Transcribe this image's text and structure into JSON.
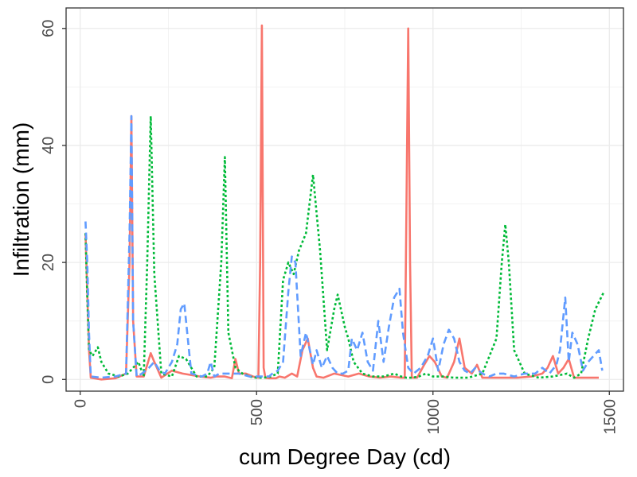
{
  "chart_data": {
    "type": "line",
    "title": "",
    "xlabel": "cum Degree Day (cd)",
    "ylabel": "Infiltration (mm)",
    "xlim": [
      -40,
      1540
    ],
    "ylim": [
      -2,
      63.5
    ],
    "x_ticks": [
      0,
      500,
      1000,
      1500
    ],
    "x_tick_labels": [
      "0",
      "500",
      "1000",
      "1500"
    ],
    "y_ticks": [
      0,
      20,
      40,
      60
    ],
    "y_tick_labels": [
      "0",
      "20",
      "40",
      "60"
    ],
    "x_minor_ticks": [
      250,
      750,
      1250
    ],
    "y_minor_ticks": [
      10,
      30,
      50
    ],
    "grid": true,
    "legend": "none",
    "series": [
      {
        "color": "#F8766D",
        "dash": "solid",
        "x": [
          15,
          20,
          25,
          30,
          60,
          100,
          130,
          140,
          145,
          150,
          160,
          180,
          200,
          210,
          230,
          260,
          290,
          340,
          370,
          385,
          410,
          430,
          440,
          450,
          470,
          490,
          505,
          510,
          515,
          520,
          525,
          535,
          555,
          565,
          580,
          600,
          615,
          630,
          645,
          660,
          670,
          690,
          720,
          760,
          790,
          820,
          850,
          880,
          910,
          920,
          925,
          930,
          935,
          940,
          945,
          955,
          975,
          990,
          1005,
          1025,
          1040,
          1060,
          1075,
          1090,
          1110,
          1125,
          1140,
          1165,
          1200,
          1240,
          1280,
          1310,
          1325,
          1340,
          1355,
          1370,
          1385,
          1400,
          1430,
          1470
        ],
        "y": [
          25,
          15,
          5,
          0.3,
          0,
          0.2,
          1,
          20,
          45,
          10,
          0.5,
          0.5,
          4.5,
          3,
          0.3,
          1.5,
          1,
          0.5,
          0.3,
          0.5,
          0.5,
          0.2,
          3.5,
          1,
          1,
          0.5,
          0.3,
          20,
          60.5,
          2,
          0.3,
          0.2,
          0.2,
          0.5,
          0.3,
          1,
          0.5,
          5,
          7,
          2,
          0.5,
          0.3,
          1,
          0.5,
          1,
          0.5,
          0.3,
          0.5,
          0.3,
          0.3,
          30,
          60,
          20,
          0.3,
          0.3,
          0.3,
          2.5,
          4,
          3,
          0.5,
          0.3,
          3,
          7,
          2,
          1,
          2.5,
          0.3,
          0.3,
          0.3,
          0.3,
          0.5,
          1,
          2,
          4,
          1,
          2,
          3.5,
          0.3,
          0.3,
          0.3
        ]
      },
      {
        "color": "#00BA38",
        "dash": "dotted",
        "x": [
          15,
          20,
          25,
          35,
          50,
          60,
          80,
          110,
          135,
          150,
          165,
          180,
          190,
          200,
          210,
          230,
          260,
          280,
          300,
          330,
          360,
          380,
          400,
          410,
          420,
          440,
          460,
          480,
          500,
          520,
          540,
          560,
          575,
          590,
          605,
          620,
          640,
          660,
          680,
          700,
          720,
          730,
          750,
          760,
          775,
          800,
          830,
          860,
          890,
          910,
          925,
          940,
          960,
          980,
          1000,
          1030,
          1060,
          1100,
          1140,
          1180,
          1195,
          1205,
          1215,
          1230,
          1260,
          1300,
          1340,
          1380,
          1400,
          1420,
          1440,
          1460,
          1485
        ],
        "y": [
          25,
          14,
          5,
          4,
          5.5,
          3,
          1,
          0.5,
          1,
          2,
          3,
          0.5,
          20,
          45,
          18,
          1,
          0.5,
          4,
          3.5,
          0.5,
          0.5,
          2,
          20,
          38,
          8,
          2,
          1,
          0.5,
          0.3,
          0.3,
          0.5,
          1,
          17,
          20,
          18,
          22,
          25,
          35,
          22,
          5,
          12,
          14.5,
          9,
          7,
          3,
          1,
          0.5,
          0.5,
          1,
          0.5,
          0.3,
          0.3,
          0.5,
          1,
          0.5,
          0.5,
          0.3,
          0.3,
          1,
          7,
          20,
          26.5,
          20,
          5,
          1,
          0.3,
          0.5,
          1,
          0.3,
          1,
          7,
          12,
          15
        ]
      },
      {
        "color": "#619CFF",
        "dash": "dashed",
        "x": [
          15,
          20,
          25,
          30,
          60,
          100,
          130,
          140,
          145,
          150,
          160,
          175,
          195,
          210,
          225,
          240,
          260,
          275,
          285,
          295,
          315,
          345,
          360,
          370,
          380,
          395,
          420,
          450,
          480,
          510,
          535,
          545,
          560,
          575,
          590,
          600,
          610,
          625,
          640,
          660,
          670,
          685,
          700,
          715,
          730,
          745,
          760,
          770,
          785,
          800,
          815,
          830,
          845,
          860,
          875,
          890,
          905,
          915,
          930,
          945,
          965,
          985,
          1000,
          1015,
          1030,
          1045,
          1060,
          1075,
          1090,
          1105,
          1120,
          1140,
          1160,
          1180,
          1200,
          1230,
          1260,
          1290,
          1310,
          1330,
          1350,
          1360,
          1375,
          1385,
          1395,
          1410,
          1425,
          1440,
          1455,
          1470,
          1480
        ],
        "y": [
          27,
          20,
          8,
          0.5,
          0.3,
          0.5,
          1,
          25,
          45,
          10,
          0.5,
          1,
          2,
          3,
          1.5,
          1,
          3,
          6,
          12,
          13,
          1,
          0.5,
          1,
          3,
          0.5,
          1,
          1,
          1,
          0.5,
          0.5,
          0.5,
          1,
          1.5,
          3,
          15,
          21,
          20,
          4,
          8,
          2.5,
          5,
          2,
          4,
          2,
          1,
          1,
          1.5,
          7,
          5,
          8,
          3,
          1.5,
          10,
          3,
          9,
          14,
          15.5,
          8,
          2,
          1,
          2,
          4,
          7,
          1.5,
          6,
          8.5,
          7,
          3,
          1.5,
          1,
          2,
          1,
          0.5,
          1,
          1,
          0.5,
          1,
          1,
          2,
          1,
          2.5,
          5,
          14,
          3,
          8,
          6,
          1.5,
          3,
          4,
          5,
          1.5
        ]
      }
    ]
  }
}
